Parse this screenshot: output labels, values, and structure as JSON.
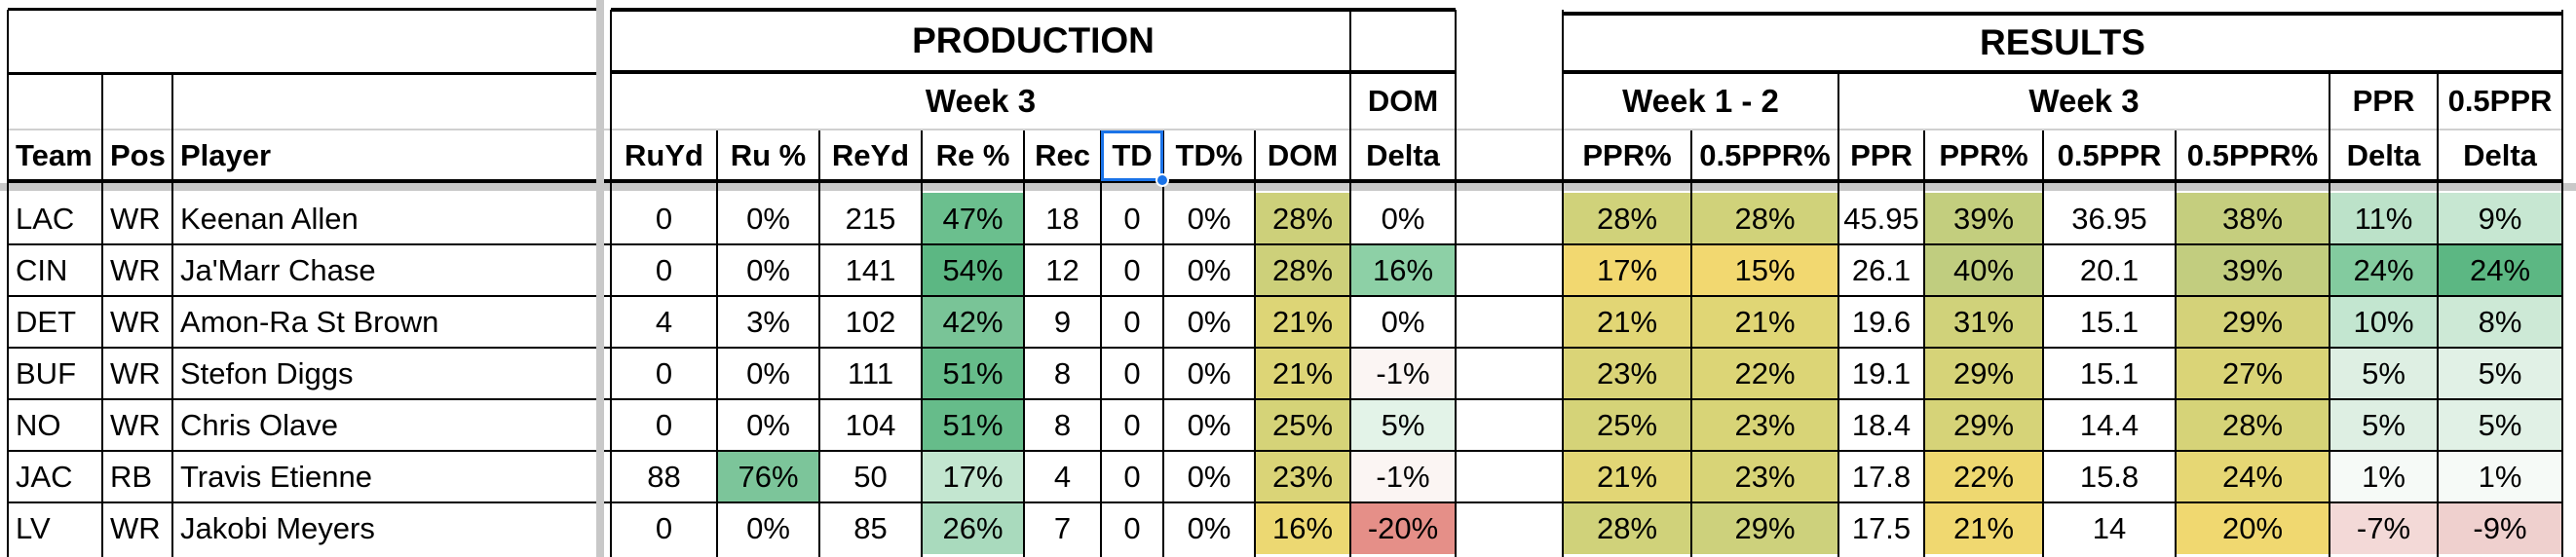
{
  "headers": {
    "production": "PRODUCTION",
    "results": "RESULTS",
    "week3": "Week 3",
    "week12": "Week 1 - 2",
    "dom_top": "DOM",
    "ppr_top": "PPR",
    "ppr05_top": "0.5PPR"
  },
  "columns": [
    {
      "key": "team",
      "label": "Team"
    },
    {
      "key": "pos",
      "label": "Pos"
    },
    {
      "key": "player",
      "label": "Player"
    },
    {
      "key": "ruyd",
      "label": "RuYd"
    },
    {
      "key": "rupct",
      "label": "Ru %"
    },
    {
      "key": "reyd",
      "label": "ReYd"
    },
    {
      "key": "repct",
      "label": "Re %"
    },
    {
      "key": "rec",
      "label": "Rec"
    },
    {
      "key": "td",
      "label": "TD"
    },
    {
      "key": "tdpct",
      "label": "TD%"
    },
    {
      "key": "dom",
      "label": "DOM"
    },
    {
      "key": "domdelta",
      "label": "Delta"
    },
    {
      "key": "blank",
      "label": ""
    },
    {
      "key": "w12ppr",
      "label": "PPR%"
    },
    {
      "key": "w12half",
      "label": "0.5PPR%"
    },
    {
      "key": "w3ppr",
      "label": "PPR"
    },
    {
      "key": "w3pprpct",
      "label": "PPR%"
    },
    {
      "key": "w3half",
      "label": "0.5PPR"
    },
    {
      "key": "w3halfpct",
      "label": "0.5PPR%"
    },
    {
      "key": "pprdelta",
      "label": "Delta"
    },
    {
      "key": "halfdelta",
      "label": "Delta"
    }
  ],
  "rows": [
    {
      "team": "LAC",
      "pos": "WR",
      "player": "Keenan Allen",
      "ruyd": "0",
      "rupct": "0%",
      "reyd": "215",
      "repct": "47%",
      "rec": "18",
      "td": "0",
      "tdpct": "0%",
      "dom": "28%",
      "domdelta": "0%",
      "blank": "",
      "w12ppr": "28%",
      "w12half": "28%",
      "w3ppr": "45.95",
      "w3pprpct": "39%",
      "w3half": "36.95",
      "w3halfpct": "38%",
      "pprdelta": "11%",
      "halfdelta": "9%"
    },
    {
      "team": "CIN",
      "pos": "WR",
      "player": "Ja'Marr Chase",
      "ruyd": "0",
      "rupct": "0%",
      "reyd": "141",
      "repct": "54%",
      "rec": "12",
      "td": "0",
      "tdpct": "0%",
      "dom": "28%",
      "domdelta": "16%",
      "blank": "",
      "w12ppr": "17%",
      "w12half": "15%",
      "w3ppr": "26.1",
      "w3pprpct": "40%",
      "w3half": "20.1",
      "w3halfpct": "39%",
      "pprdelta": "24%",
      "halfdelta": "24%"
    },
    {
      "team": "DET",
      "pos": "WR",
      "player": "Amon-Ra St Brown",
      "ruyd": "4",
      "rupct": "3%",
      "reyd": "102",
      "repct": "42%",
      "rec": "9",
      "td": "0",
      "tdpct": "0%",
      "dom": "21%",
      "domdelta": "0%",
      "blank": "",
      "w12ppr": "21%",
      "w12half": "21%",
      "w3ppr": "19.6",
      "w3pprpct": "31%",
      "w3half": "15.1",
      "w3halfpct": "29%",
      "pprdelta": "10%",
      "halfdelta": "8%"
    },
    {
      "team": "BUF",
      "pos": "WR",
      "player": "Stefon Diggs",
      "ruyd": "0",
      "rupct": "0%",
      "reyd": "111",
      "repct": "51%",
      "rec": "8",
      "td": "0",
      "tdpct": "0%",
      "dom": "21%",
      "domdelta": "-1%",
      "blank": "",
      "w12ppr": "23%",
      "w12half": "22%",
      "w3ppr": "19.1",
      "w3pprpct": "29%",
      "w3half": "15.1",
      "w3halfpct": "27%",
      "pprdelta": "5%",
      "halfdelta": "5%"
    },
    {
      "team": "NO",
      "pos": "WR",
      "player": "Chris Olave",
      "ruyd": "0",
      "rupct": "0%",
      "reyd": "104",
      "repct": "51%",
      "rec": "8",
      "td": "0",
      "tdpct": "0%",
      "dom": "25%",
      "domdelta": "5%",
      "blank": "",
      "w12ppr": "25%",
      "w12half": "23%",
      "w3ppr": "18.4",
      "w3pprpct": "29%",
      "w3half": "14.4",
      "w3halfpct": "28%",
      "pprdelta": "5%",
      "halfdelta": "5%"
    },
    {
      "team": "JAC",
      "pos": "RB",
      "player": "Travis Etienne",
      "ruyd": "88",
      "rupct": "76%",
      "reyd": "50",
      "repct": "17%",
      "rec": "4",
      "td": "0",
      "tdpct": "0%",
      "dom": "23%",
      "domdelta": "-1%",
      "blank": "",
      "w12ppr": "21%",
      "w12half": "23%",
      "w3ppr": "17.8",
      "w3pprpct": "22%",
      "w3half": "15.8",
      "w3halfpct": "24%",
      "pprdelta": "1%",
      "halfdelta": "1%"
    },
    {
      "team": "LV",
      "pos": "WR",
      "player": "Jakobi Meyers",
      "ruyd": "0",
      "rupct": "0%",
      "reyd": "85",
      "repct": "26%",
      "rec": "7",
      "td": "0",
      "tdpct": "0%",
      "dom": "16%",
      "domdelta": "-20%",
      "blank": "",
      "w12ppr": "28%",
      "w12half": "29%",
      "w3ppr": "17.5",
      "w3pprpct": "21%",
      "w3half": "14",
      "w3halfpct": "20%",
      "pprdelta": "-7%",
      "halfdelta": "-9%"
    }
  ],
  "fills": {
    "repct": [
      "#6bbf8e",
      "#5cb783",
      "#79c497",
      "#66bc8a",
      "#66bc8a",
      "#c3e6d0",
      "#a9dabd"
    ],
    "rupct": [
      null,
      null,
      null,
      null,
      null,
      "#7cc59a",
      null
    ],
    "dom": [
      "#cdd07a",
      "#cdd07a",
      "#ddd576",
      "#ddd576",
      "#d5d378",
      "#dad477",
      "#ecd872"
    ],
    "domdelta": [
      "#ffffff",
      "#8dd0a6",
      "#ffffff",
      "#fbf5f3",
      "#e3f3e8",
      "#fbf5f3",
      "#e58f88"
    ],
    "w12ppr": [
      "#d0d27a",
      "#f2d870",
      "#e2d675",
      "#dad477",
      "#d5d378",
      "#e2d675",
      "#d0d27a"
    ],
    "w12half": [
      "#d0d27a",
      "#f2d870",
      "#e0d675",
      "#dcd576",
      "#d8d477",
      "#d8d477",
      "#cdd17c"
    ],
    "w3pprpct": [
      "#c3ce7e",
      "#c0cd7f",
      "#d0d27a",
      "#d6d378",
      "#d6d378",
      "#eed870",
      "#f0d870"
    ],
    "w3halfpct": [
      "#c5ce7e",
      "#c2cd7f",
      "#d4d279",
      "#dad477",
      "#d6d378",
      "#e6d774",
      "#f0d870"
    ],
    "pprdelta": [
      "#bce2c9",
      "#83cb9f",
      "#c3e6d0",
      "#deefe3",
      "#deefe3",
      "#f6faf7",
      "#f3d9d7"
    ],
    "halfdelta": [
      "#c7e7d2",
      "#5cb783",
      "#cde9d6",
      "#e1f1e6",
      "#e1f1e6",
      "#f6faf7",
      "#efd0ce"
    ]
  }
}
